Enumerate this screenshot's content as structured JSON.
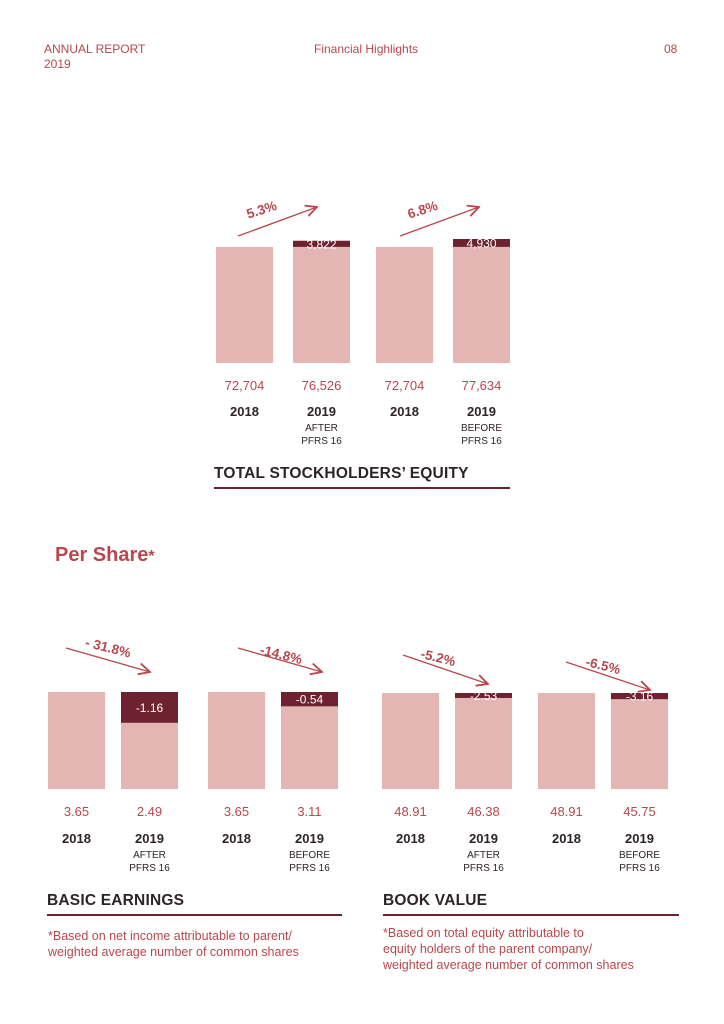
{
  "header": {
    "left_line1": "ANNUAL REPORT",
    "left_line2": "2019",
    "center": "Financial Highlights",
    "page": "08"
  },
  "colors": {
    "bar": "#e3b5b3",
    "increment": "#6e2230",
    "accent": "#b8474e",
    "text": "#2e2426"
  },
  "equity": {
    "title": "TOTAL STOCKHOLDERS’ EQUITY",
    "chart_data": {
      "type": "bar",
      "title": "TOTAL STOCKHOLDERS’ EQUITY",
      "groups": [
        {
          "growth": "5.3%",
          "bars": [
            {
              "value": 72704,
              "label": "72,704",
              "year": "2018",
              "sub": []
            },
            {
              "value": 76526,
              "label": "76,526",
              "year": "2019",
              "sub": [
                "AFTER",
                "PFRS 16"
              ],
              "change": "3,822",
              "direction": "up"
            }
          ]
        },
        {
          "growth": "6.8%",
          "bars": [
            {
              "value": 72704,
              "label": "72,704",
              "year": "2018",
              "sub": []
            },
            {
              "value": 77634,
              "label": "77,634",
              "year": "2019",
              "sub": [
                "BEFORE",
                "PFRS 16"
              ],
              "change": "4,930",
              "direction": "up"
            }
          ]
        }
      ]
    }
  },
  "per_share": {
    "heading": "Per Share",
    "asterisk": "*",
    "basic": {
      "title": "BASIC EARNINGS",
      "note": [
        "*Based on net income attributable to parent/",
        "weighted average number of common shares"
      ],
      "chart_data": {
        "type": "bar",
        "title": "BASIC EARNINGS",
        "groups": [
          {
            "growth": "- 31.8%",
            "bars": [
              {
                "value": 3.65,
                "label": "3.65",
                "year": "2018",
                "sub": []
              },
              {
                "value": 2.49,
                "label": "2.49",
                "year": "2019",
                "sub": [
                  "AFTER",
                  "PFRS 16"
                ],
                "change": "-1.16",
                "direction": "down"
              }
            ]
          },
          {
            "growth": "-14.8%",
            "bars": [
              {
                "value": 3.65,
                "label": "3.65",
                "year": "2018",
                "sub": []
              },
              {
                "value": 3.11,
                "label": "3.11",
                "year": "2019",
                "sub": [
                  "BEFORE",
                  "PFRS 16"
                ],
                "change": "-0.54",
                "direction": "down"
              }
            ]
          }
        ]
      }
    },
    "book": {
      "title": "BOOK VALUE",
      "note": [
        "*Based on total equity attributable to",
        "equity holders of the parent company/",
        "weighted average number of common shares"
      ],
      "chart_data": {
        "type": "bar",
        "title": "BOOK VALUE",
        "groups": [
          {
            "growth": "-5.2%",
            "bars": [
              {
                "value": 48.91,
                "label": "48.91",
                "year": "2018",
                "sub": []
              },
              {
                "value": 46.38,
                "label": "46.38",
                "year": "2019",
                "sub": [
                  "AFTER",
                  "PFRS 16"
                ],
                "change": "-2.53",
                "direction": "down"
              }
            ]
          },
          {
            "growth": "-6.5%",
            "bars": [
              {
                "value": 48.91,
                "label": "48.91",
                "year": "2018",
                "sub": []
              },
              {
                "value": 45.75,
                "label": "45.75",
                "year": "2019",
                "sub": [
                  "BEFORE",
                  "PFRS 16"
                ],
                "change": "-3.16",
                "direction": "down"
              }
            ]
          }
        ]
      }
    }
  }
}
